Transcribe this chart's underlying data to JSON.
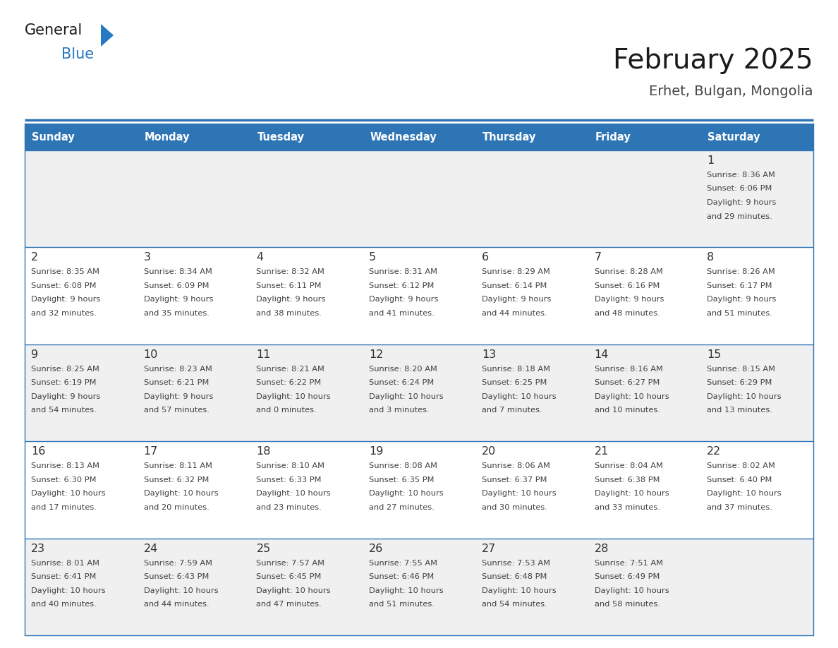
{
  "title": "February 2025",
  "subtitle": "Erhet, Bulgan, Mongolia",
  "days_of_week": [
    "Sunday",
    "Monday",
    "Tuesday",
    "Wednesday",
    "Thursday",
    "Friday",
    "Saturday"
  ],
  "header_bg": "#2E75B6",
  "header_text": "#FFFFFF",
  "cell_bg_white": "#FFFFFF",
  "cell_bg_light": "#F0F0F0",
  "day_number_color": "#333333",
  "text_color": "#404040",
  "line_color": "#2E75B6",
  "logo_text_color": "#1a1a1a",
  "logo_blue_color": "#2479C2",
  "title_color": "#1a1a1a",
  "subtitle_color": "#444444",
  "calendar_data": [
    [
      {
        "day": null,
        "sunrise": null,
        "sunset": null,
        "daylight1": null,
        "daylight2": null
      },
      {
        "day": null,
        "sunrise": null,
        "sunset": null,
        "daylight1": null,
        "daylight2": null
      },
      {
        "day": null,
        "sunrise": null,
        "sunset": null,
        "daylight1": null,
        "daylight2": null
      },
      {
        "day": null,
        "sunrise": null,
        "sunset": null,
        "daylight1": null,
        "daylight2": null
      },
      {
        "day": null,
        "sunrise": null,
        "sunset": null,
        "daylight1": null,
        "daylight2": null
      },
      {
        "day": null,
        "sunrise": null,
        "sunset": null,
        "daylight1": null,
        "daylight2": null
      },
      {
        "day": "1",
        "sunrise": "8:36 AM",
        "sunset": "6:06 PM",
        "daylight1": "9 hours",
        "daylight2": "and 29 minutes."
      }
    ],
    [
      {
        "day": "2",
        "sunrise": "8:35 AM",
        "sunset": "6:08 PM",
        "daylight1": "9 hours",
        "daylight2": "and 32 minutes."
      },
      {
        "day": "3",
        "sunrise": "8:34 AM",
        "sunset": "6:09 PM",
        "daylight1": "9 hours",
        "daylight2": "and 35 minutes."
      },
      {
        "day": "4",
        "sunrise": "8:32 AM",
        "sunset": "6:11 PM",
        "daylight1": "9 hours",
        "daylight2": "and 38 minutes."
      },
      {
        "day": "5",
        "sunrise": "8:31 AM",
        "sunset": "6:12 PM",
        "daylight1": "9 hours",
        "daylight2": "and 41 minutes."
      },
      {
        "day": "6",
        "sunrise": "8:29 AM",
        "sunset": "6:14 PM",
        "daylight1": "9 hours",
        "daylight2": "and 44 minutes."
      },
      {
        "day": "7",
        "sunrise": "8:28 AM",
        "sunset": "6:16 PM",
        "daylight1": "9 hours",
        "daylight2": "and 48 minutes."
      },
      {
        "day": "8",
        "sunrise": "8:26 AM",
        "sunset": "6:17 PM",
        "daylight1": "9 hours",
        "daylight2": "and 51 minutes."
      }
    ],
    [
      {
        "day": "9",
        "sunrise": "8:25 AM",
        "sunset": "6:19 PM",
        "daylight1": "9 hours",
        "daylight2": "and 54 minutes."
      },
      {
        "day": "10",
        "sunrise": "8:23 AM",
        "sunset": "6:21 PM",
        "daylight1": "9 hours",
        "daylight2": "and 57 minutes."
      },
      {
        "day": "11",
        "sunrise": "8:21 AM",
        "sunset": "6:22 PM",
        "daylight1": "10 hours",
        "daylight2": "and 0 minutes."
      },
      {
        "day": "12",
        "sunrise": "8:20 AM",
        "sunset": "6:24 PM",
        "daylight1": "10 hours",
        "daylight2": "and 3 minutes."
      },
      {
        "day": "13",
        "sunrise": "8:18 AM",
        "sunset": "6:25 PM",
        "daylight1": "10 hours",
        "daylight2": "and 7 minutes."
      },
      {
        "day": "14",
        "sunrise": "8:16 AM",
        "sunset": "6:27 PM",
        "daylight1": "10 hours",
        "daylight2": "and 10 minutes."
      },
      {
        "day": "15",
        "sunrise": "8:15 AM",
        "sunset": "6:29 PM",
        "daylight1": "10 hours",
        "daylight2": "and 13 minutes."
      }
    ],
    [
      {
        "day": "16",
        "sunrise": "8:13 AM",
        "sunset": "6:30 PM",
        "daylight1": "10 hours",
        "daylight2": "and 17 minutes."
      },
      {
        "day": "17",
        "sunrise": "8:11 AM",
        "sunset": "6:32 PM",
        "daylight1": "10 hours",
        "daylight2": "and 20 minutes."
      },
      {
        "day": "18",
        "sunrise": "8:10 AM",
        "sunset": "6:33 PM",
        "daylight1": "10 hours",
        "daylight2": "and 23 minutes."
      },
      {
        "day": "19",
        "sunrise": "8:08 AM",
        "sunset": "6:35 PM",
        "daylight1": "10 hours",
        "daylight2": "and 27 minutes."
      },
      {
        "day": "20",
        "sunrise": "8:06 AM",
        "sunset": "6:37 PM",
        "daylight1": "10 hours",
        "daylight2": "and 30 minutes."
      },
      {
        "day": "21",
        "sunrise": "8:04 AM",
        "sunset": "6:38 PM",
        "daylight1": "10 hours",
        "daylight2": "and 33 minutes."
      },
      {
        "day": "22",
        "sunrise": "8:02 AM",
        "sunset": "6:40 PM",
        "daylight1": "10 hours",
        "daylight2": "and 37 minutes."
      }
    ],
    [
      {
        "day": "23",
        "sunrise": "8:01 AM",
        "sunset": "6:41 PM",
        "daylight1": "10 hours",
        "daylight2": "and 40 minutes."
      },
      {
        "day": "24",
        "sunrise": "7:59 AM",
        "sunset": "6:43 PM",
        "daylight1": "10 hours",
        "daylight2": "and 44 minutes."
      },
      {
        "day": "25",
        "sunrise": "7:57 AM",
        "sunset": "6:45 PM",
        "daylight1": "10 hours",
        "daylight2": "and 47 minutes."
      },
      {
        "day": "26",
        "sunrise": "7:55 AM",
        "sunset": "6:46 PM",
        "daylight1": "10 hours",
        "daylight2": "and 51 minutes."
      },
      {
        "day": "27",
        "sunrise": "7:53 AM",
        "sunset": "6:48 PM",
        "daylight1": "10 hours",
        "daylight2": "and 54 minutes."
      },
      {
        "day": "28",
        "sunrise": "7:51 AM",
        "sunset": "6:49 PM",
        "daylight1": "10 hours",
        "daylight2": "and 58 minutes."
      },
      {
        "day": null,
        "sunrise": null,
        "sunset": null,
        "daylight1": null,
        "daylight2": null
      }
    ]
  ]
}
